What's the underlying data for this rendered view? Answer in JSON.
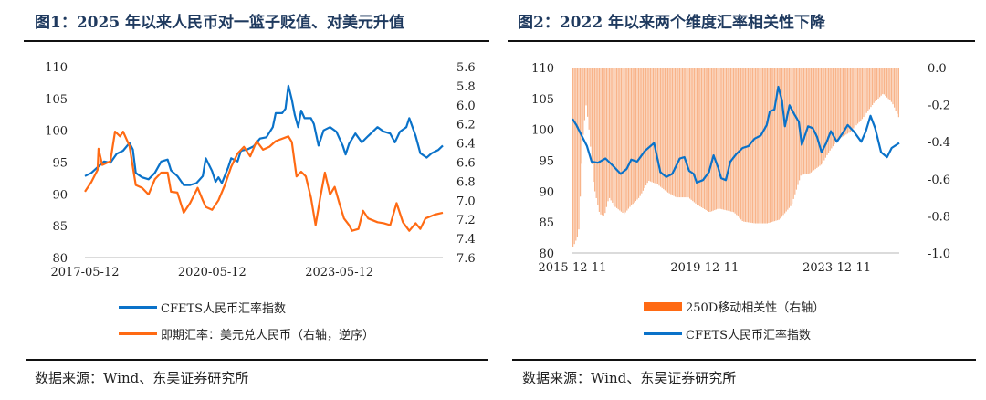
{
  "colors": {
    "cfets": "#0a72c9",
    "usdcny": "#ff6a13",
    "corr": "#f8b48a",
    "title": "#1f3a5f"
  },
  "source": "数据来源：Wind、东吴证券研究所",
  "chart_data": [
    {
      "type": "line",
      "title": "图1：2025 年以来人民币对一篮子贬值、对美元升值",
      "x_unit": "fractional year",
      "xlim": [
        2017.36,
        2025.8
      ],
      "x_ticks": [
        {
          "x": 2017.36,
          "label": "2017-05-12"
        },
        {
          "x": 2020.36,
          "label": "2020-05-12"
        },
        {
          "x": 2023.36,
          "label": "2023-05-12"
        }
      ],
      "ylim": [
        80,
        110
      ],
      "y_ticks": [
        "110",
        "105",
        "100",
        "95",
        "90",
        "85",
        "80"
      ],
      "y2lim": [
        5.6,
        7.6
      ],
      "y2_inverted": true,
      "y2_ticks": [
        "5.6",
        "5.8",
        "6.0",
        "6.2",
        "6.4",
        "6.6",
        "6.8",
        "7.0",
        "7.2",
        "7.4",
        "7.6"
      ],
      "legend_position": "bottom",
      "series": [
        {
          "name": "CFETS人民币汇率指数",
          "axis": "left",
          "color_key": "cfets",
          "points": [
            [
              2017.36,
              92.8
            ],
            [
              2017.51,
              93.3
            ],
            [
              2017.66,
              94.2
            ],
            [
              2017.81,
              95.1
            ],
            [
              2017.96,
              94.9
            ],
            [
              2018.11,
              96.3
            ],
            [
              2018.26,
              96.8
            ],
            [
              2018.41,
              98.0
            ],
            [
              2018.49,
              97.0
            ],
            [
              2018.56,
              93.3
            ],
            [
              2018.71,
              92.6
            ],
            [
              2018.86,
              92.3
            ],
            [
              2019.01,
              93.3
            ],
            [
              2019.16,
              95.1
            ],
            [
              2019.31,
              95.4
            ],
            [
              2019.39,
              93.7
            ],
            [
              2019.54,
              92.8
            ],
            [
              2019.69,
              91.4
            ],
            [
              2019.84,
              91.4
            ],
            [
              2019.99,
              91.7
            ],
            [
              2020.14,
              92.8
            ],
            [
              2020.21,
              95.6
            ],
            [
              2020.36,
              93.6
            ],
            [
              2020.44,
              91.9
            ],
            [
              2020.51,
              92.6
            ],
            [
              2020.59,
              91.7
            ],
            [
              2020.74,
              94.2
            ],
            [
              2020.81,
              95.6
            ],
            [
              2020.96,
              95.1
            ],
            [
              2021.04,
              96.8
            ],
            [
              2021.19,
              97.0
            ],
            [
              2021.34,
              97.5
            ],
            [
              2021.49,
              98.7
            ],
            [
              2021.64,
              98.9
            ],
            [
              2021.79,
              100.5
            ],
            [
              2021.86,
              102.7
            ],
            [
              2022.01,
              102.7
            ],
            [
              2022.09,
              103.4
            ],
            [
              2022.16,
              107.0
            ],
            [
              2022.24,
              104.8
            ],
            [
              2022.31,
              102.4
            ],
            [
              2022.39,
              100.5
            ],
            [
              2022.46,
              103.1
            ],
            [
              2022.54,
              101.9
            ],
            [
              2022.69,
              101.9
            ],
            [
              2022.76,
              101.0
            ],
            [
              2022.87,
              97.6
            ],
            [
              2022.99,
              100.0
            ],
            [
              2023.14,
              100.5
            ],
            [
              2023.29,
              99.8
            ],
            [
              2023.44,
              97.6
            ],
            [
              2023.51,
              96.2
            ],
            [
              2023.59,
              97.9
            ],
            [
              2023.74,
              99.5
            ],
            [
              2023.89,
              98.1
            ],
            [
              2024.04,
              99.1
            ],
            [
              2024.26,
              100.5
            ],
            [
              2024.41,
              99.8
            ],
            [
              2024.56,
              99.5
            ],
            [
              2024.67,
              98.1
            ],
            [
              2024.79,
              99.8
            ],
            [
              2024.94,
              100.5
            ],
            [
              2025.01,
              101.9
            ],
            [
              2025.16,
              99.1
            ],
            [
              2025.27,
              96.4
            ],
            [
              2025.42,
              95.7
            ],
            [
              2025.54,
              96.4
            ],
            [
              2025.69,
              96.9
            ],
            [
              2025.8,
              97.6
            ]
          ]
        },
        {
          "name": "即期汇率：美元兑人民币（右轴，逆序）",
          "axis": "right",
          "color_key": "usdcny",
          "points": [
            [
              2017.36,
              6.91
            ],
            [
              2017.51,
              6.81
            ],
            [
              2017.66,
              6.68
            ],
            [
              2017.68,
              6.46
            ],
            [
              2017.77,
              6.63
            ],
            [
              2017.96,
              6.59
            ],
            [
              2018.07,
              6.28
            ],
            [
              2018.19,
              6.33
            ],
            [
              2018.26,
              6.28
            ],
            [
              2018.41,
              6.43
            ],
            [
              2018.56,
              6.84
            ],
            [
              2018.71,
              6.87
            ],
            [
              2018.86,
              6.94
            ],
            [
              2019.01,
              6.78
            ],
            [
              2019.16,
              6.71
            ],
            [
              2019.31,
              6.71
            ],
            [
              2019.39,
              6.91
            ],
            [
              2019.54,
              6.92
            ],
            [
              2019.69,
              7.13
            ],
            [
              2019.84,
              7.03
            ],
            [
              2020.02,
              6.87
            ],
            [
              2020.14,
              7.0
            ],
            [
              2020.21,
              7.07
            ],
            [
              2020.36,
              7.1
            ],
            [
              2020.51,
              7.0
            ],
            [
              2020.66,
              6.84
            ],
            [
              2020.81,
              6.65
            ],
            [
              2020.96,
              6.51
            ],
            [
              2021.11,
              6.44
            ],
            [
              2021.26,
              6.54
            ],
            [
              2021.41,
              6.38
            ],
            [
              2021.56,
              6.47
            ],
            [
              2021.71,
              6.44
            ],
            [
              2021.86,
              6.38
            ],
            [
              2022.16,
              6.33
            ],
            [
              2022.24,
              6.39
            ],
            [
              2022.35,
              6.75
            ],
            [
              2022.46,
              6.7
            ],
            [
              2022.57,
              6.75
            ],
            [
              2022.69,
              6.97
            ],
            [
              2022.8,
              7.26
            ],
            [
              2022.91,
              6.97
            ],
            [
              2023.02,
              6.71
            ],
            [
              2023.14,
              6.94
            ],
            [
              2023.25,
              6.86
            ],
            [
              2023.36,
              7.03
            ],
            [
              2023.47,
              7.19
            ],
            [
              2023.59,
              7.26
            ],
            [
              2023.66,
              7.32
            ],
            [
              2023.81,
              7.3
            ],
            [
              2023.92,
              7.11
            ],
            [
              2024.04,
              7.19
            ],
            [
              2024.26,
              7.23
            ],
            [
              2024.41,
              7.24
            ],
            [
              2024.56,
              7.26
            ],
            [
              2024.71,
              7.03
            ],
            [
              2024.86,
              7.23
            ],
            [
              2025.01,
              7.32
            ],
            [
              2025.16,
              7.24
            ],
            [
              2025.27,
              7.3
            ],
            [
              2025.39,
              7.19
            ],
            [
              2025.61,
              7.15
            ],
            [
              2025.8,
              7.13
            ]
          ]
        }
      ]
    },
    {
      "type": "bar+line",
      "title": "图2：2022 年以来两个维度汇率相关性下降",
      "x_unit": "fractional year",
      "xlim": [
        2015.95,
        2025.84
      ],
      "x_ticks": [
        {
          "x": 2015.95,
          "label": "2015-12-11"
        },
        {
          "x": 2019.95,
          "label": "2019-12-11"
        },
        {
          "x": 2023.95,
          "label": "2023-12-11"
        }
      ],
      "ylim": [
        80,
        110
      ],
      "y_ticks": [
        "110",
        "105",
        "100",
        "95",
        "90",
        "85",
        "80"
      ],
      "y2lim": [
        -1.0,
        0.0
      ],
      "y2_ticks": [
        "0.0",
        "-0.2",
        "-0.4",
        "-0.6",
        "-0.8",
        "-1.0"
      ],
      "legend_position": "bottom",
      "series": [
        {
          "name": "250D移动相关性（右轴）",
          "axis": "right",
          "kind": "bar",
          "color_key": "corr",
          "points": [
            [
              2015.95,
              -0.97
            ],
            [
              2016.12,
              -0.9
            ],
            [
              2016.25,
              -0.38
            ],
            [
              2016.35,
              -0.2
            ],
            [
              2016.44,
              -0.34
            ],
            [
              2016.58,
              -0.64
            ],
            [
              2016.76,
              -0.79
            ],
            [
              2016.9,
              -0.8
            ],
            [
              2017.04,
              -0.7
            ],
            [
              2017.22,
              -0.75
            ],
            [
              2017.5,
              -0.79
            ],
            [
              2017.68,
              -0.75
            ],
            [
              2017.96,
              -0.7
            ],
            [
              2018.24,
              -0.61
            ],
            [
              2018.51,
              -0.63
            ],
            [
              2018.79,
              -0.67
            ],
            [
              2019.07,
              -0.7
            ],
            [
              2019.44,
              -0.7
            ],
            [
              2019.71,
              -0.74
            ],
            [
              2020.08,
              -0.78
            ],
            [
              2020.36,
              -0.76
            ],
            [
              2020.82,
              -0.78
            ],
            [
              2021.09,
              -0.83
            ],
            [
              2021.46,
              -0.84
            ],
            [
              2021.83,
              -0.84
            ],
            [
              2022.2,
              -0.82
            ],
            [
              2022.57,
              -0.74
            ],
            [
              2022.85,
              -0.58
            ],
            [
              2023.12,
              -0.57
            ],
            [
              2023.49,
              -0.52
            ],
            [
              2023.68,
              -0.46
            ],
            [
              2023.95,
              -0.39
            ],
            [
              2024.32,
              -0.35
            ],
            [
              2024.69,
              -0.28
            ],
            [
              2025.06,
              -0.19
            ],
            [
              2025.34,
              -0.14
            ],
            [
              2025.61,
              -0.19
            ],
            [
              2025.84,
              -0.28
            ]
          ]
        },
        {
          "name": "CFETS人民币汇率指数",
          "axis": "left",
          "kind": "line",
          "color_key": "cfets",
          "points": [
            [
              2015.95,
              101.7
            ],
            [
              2016.07,
              100.7
            ],
            [
              2016.21,
              99.2
            ],
            [
              2016.39,
              97.3
            ],
            [
              2016.53,
              94.8
            ],
            [
              2016.72,
              94.6
            ],
            [
              2016.95,
              95.3
            ],
            [
              2017.18,
              94.1
            ],
            [
              2017.41,
              92.8
            ],
            [
              2017.59,
              93.6
            ],
            [
              2017.73,
              95.1
            ],
            [
              2017.91,
              94.8
            ],
            [
              2018.14,
              96.5
            ],
            [
              2018.42,
              97.8
            ],
            [
              2018.61,
              93.1
            ],
            [
              2018.79,
              92.3
            ],
            [
              2018.97,
              92.8
            ],
            [
              2019.2,
              95.3
            ],
            [
              2019.34,
              95.5
            ],
            [
              2019.48,
              93.3
            ],
            [
              2019.62,
              92.8
            ],
            [
              2019.71,
              91.4
            ],
            [
              2019.9,
              91.8
            ],
            [
              2020.08,
              93.1
            ],
            [
              2020.22,
              95.8
            ],
            [
              2020.36,
              93.8
            ],
            [
              2020.45,
              92.1
            ],
            [
              2020.59,
              91.8
            ],
            [
              2020.73,
              94.8
            ],
            [
              2020.91,
              96.0
            ],
            [
              2021.1,
              97.0
            ],
            [
              2021.28,
              97.3
            ],
            [
              2021.46,
              98.5
            ],
            [
              2021.65,
              99.0
            ],
            [
              2021.83,
              100.7
            ],
            [
              2021.92,
              102.9
            ],
            [
              2022.06,
              103.2
            ],
            [
              2022.18,
              106.9
            ],
            [
              2022.29,
              104.7
            ],
            [
              2022.38,
              100.5
            ],
            [
              2022.52,
              103.9
            ],
            [
              2022.66,
              102.5
            ],
            [
              2022.8,
              101.2
            ],
            [
              2022.89,
              97.5
            ],
            [
              2023.08,
              100.5
            ],
            [
              2023.22,
              100.2
            ],
            [
              2023.35,
              98.8
            ],
            [
              2023.49,
              96.3
            ],
            [
              2023.63,
              97.8
            ],
            [
              2023.77,
              99.7
            ],
            [
              2023.95,
              98.0
            ],
            [
              2024.14,
              99.5
            ],
            [
              2024.28,
              100.7
            ],
            [
              2024.46,
              99.7
            ],
            [
              2024.69,
              98.0
            ],
            [
              2024.83,
              99.7
            ],
            [
              2024.97,
              102.2
            ],
            [
              2025.11,
              100.2
            ],
            [
              2025.29,
              96.3
            ],
            [
              2025.47,
              95.5
            ],
            [
              2025.61,
              97.0
            ],
            [
              2025.84,
              97.8
            ]
          ]
        }
      ]
    }
  ]
}
